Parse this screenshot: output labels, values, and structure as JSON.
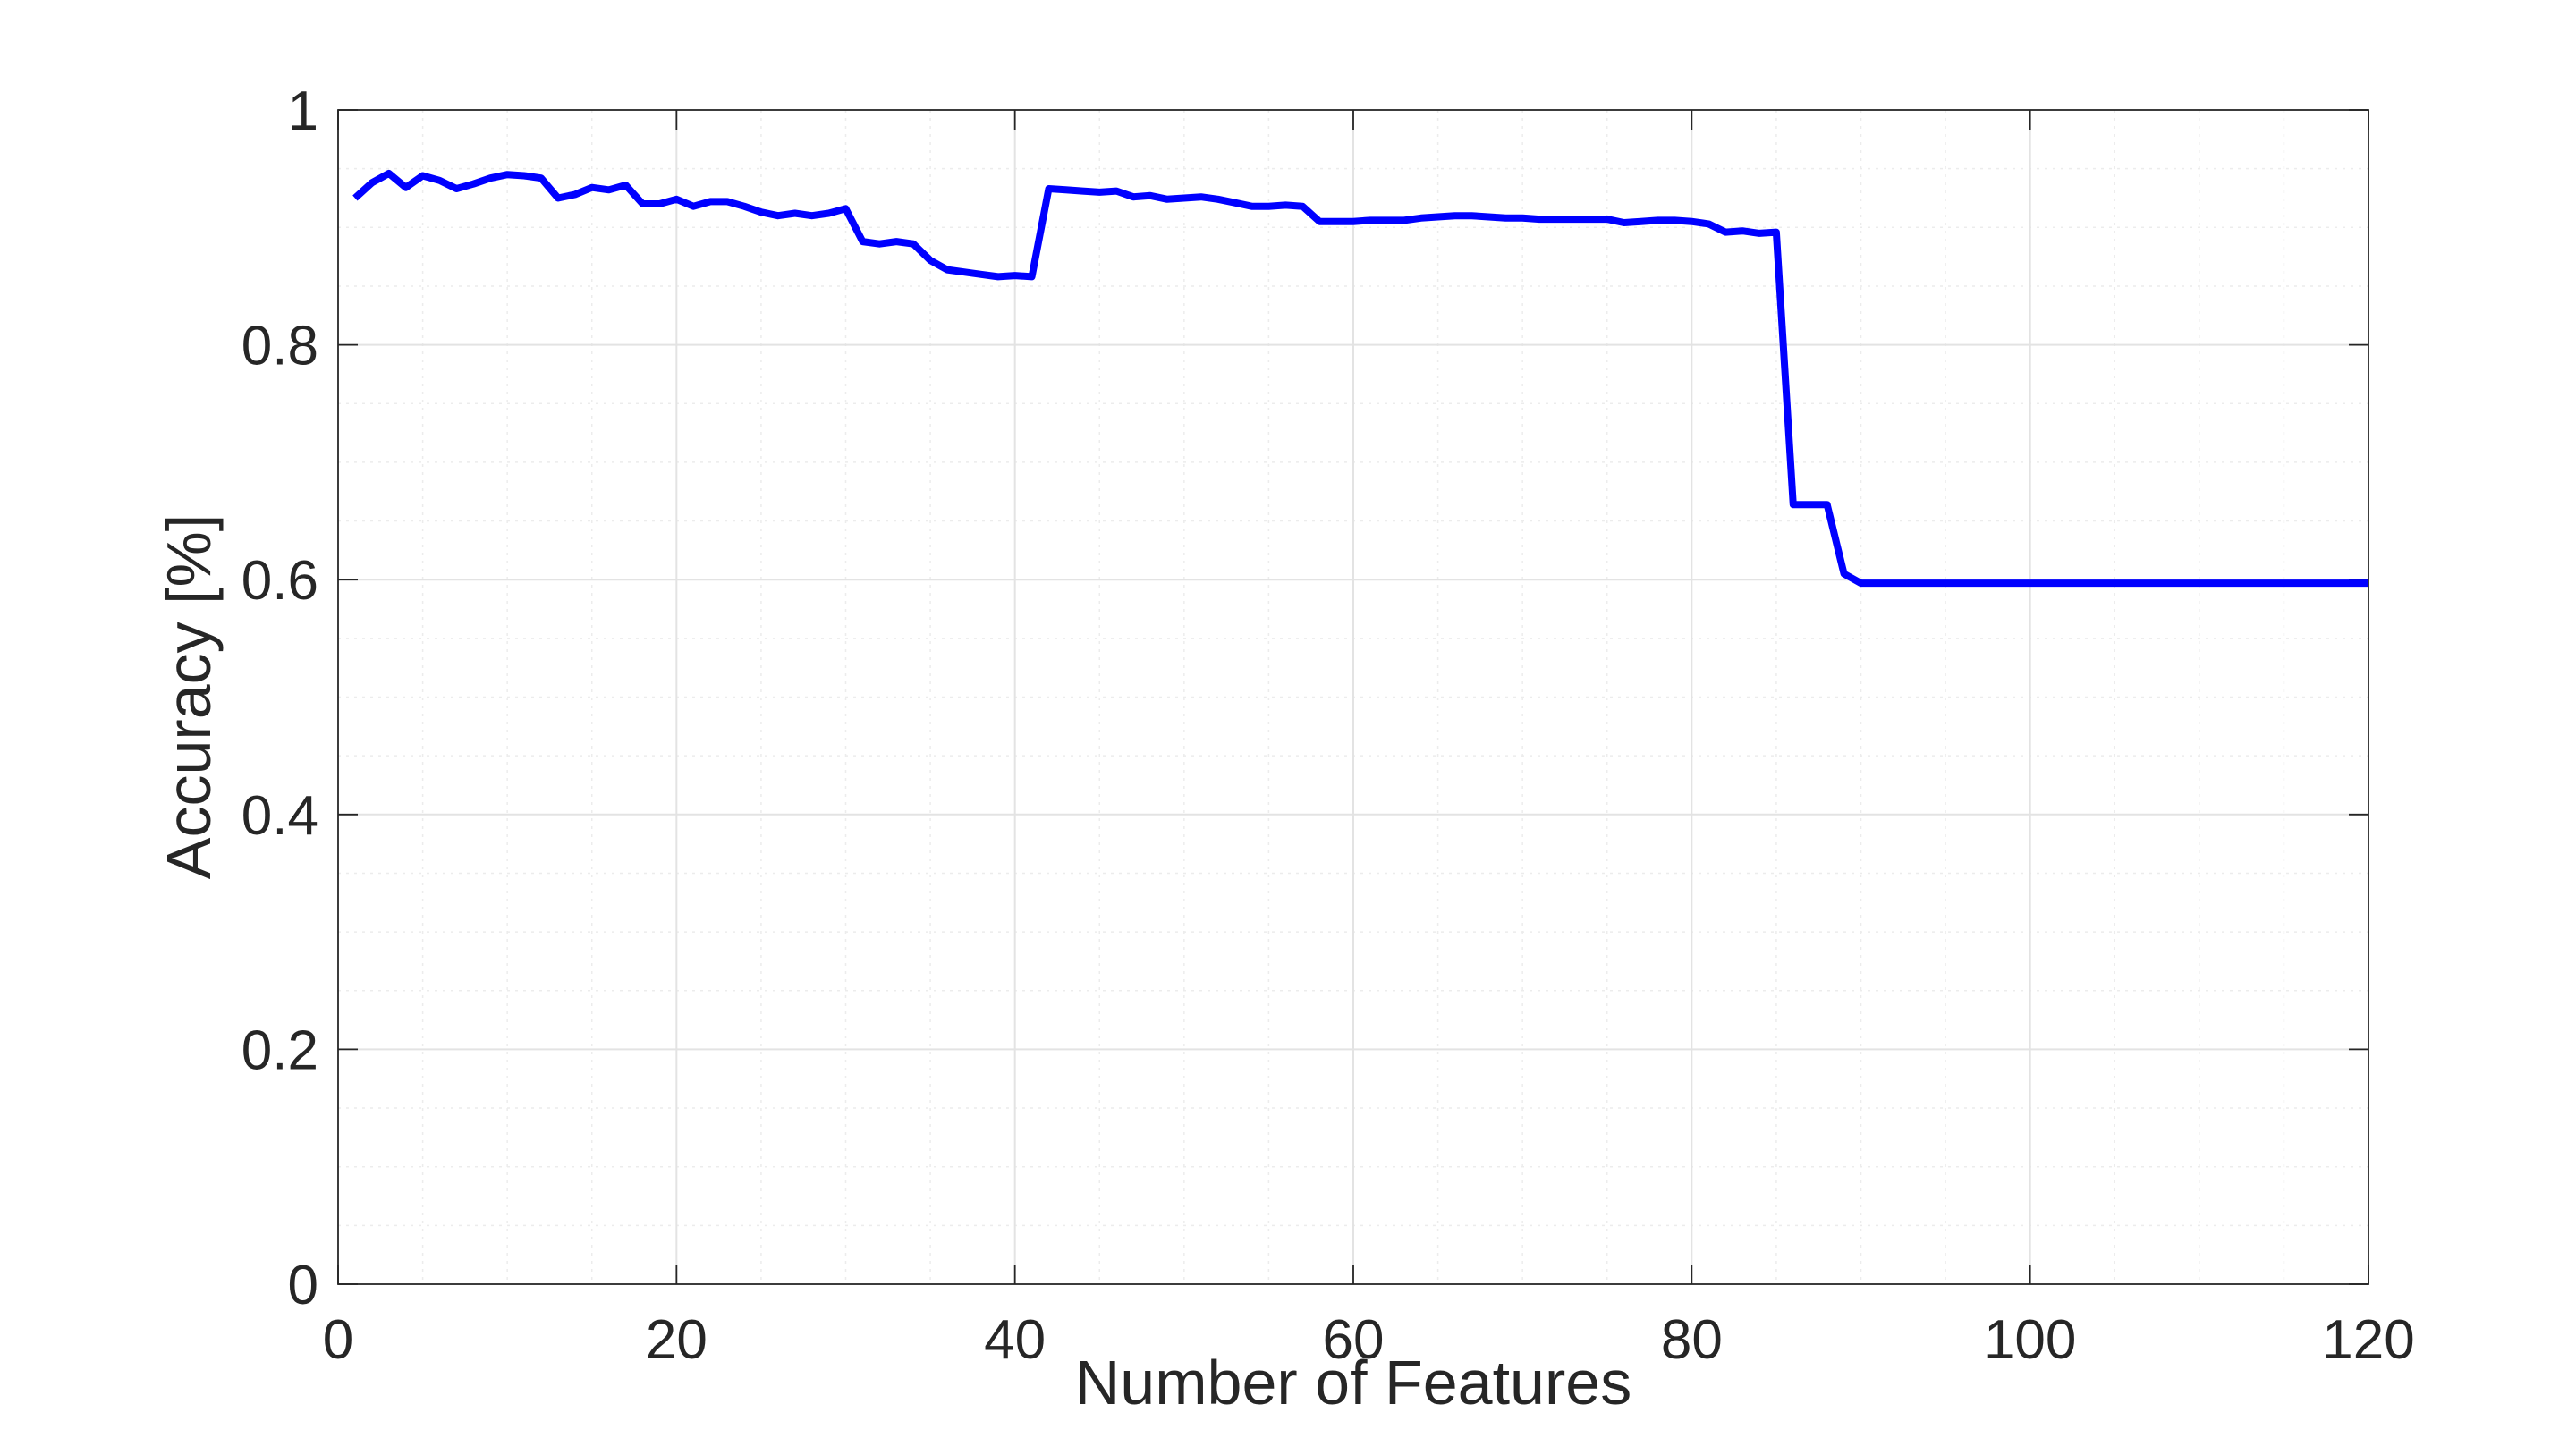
{
  "chart_data": {
    "type": "line",
    "title": "",
    "xlabel": "Number of Features",
    "ylabel": "Accuracy [%]",
    "xlim": [
      0,
      120
    ],
    "ylim": [
      0,
      1
    ],
    "xticks": [
      0,
      20,
      40,
      60,
      80,
      100,
      120
    ],
    "xtick_labels": [
      "0",
      "20",
      "40",
      "60",
      "80",
      "100",
      "120"
    ],
    "yticks": [
      0,
      0.2,
      0.4,
      0.6,
      0.8,
      1
    ],
    "ytick_labels": [
      "0",
      "0.2",
      "0.4",
      "0.6",
      "0.8",
      "1"
    ],
    "grid": "on",
    "minor_grid": "on",
    "series": [
      {
        "color": "#0000ff",
        "x": [
          1,
          2,
          3,
          4,
          5,
          6,
          7,
          8,
          9,
          10,
          11,
          12,
          13,
          14,
          15,
          16,
          17,
          18,
          19,
          20,
          21,
          22,
          23,
          24,
          25,
          26,
          27,
          28,
          29,
          30,
          31,
          32,
          33,
          34,
          35,
          36,
          37,
          38,
          39,
          40,
          41,
          42,
          43,
          44,
          45,
          46,
          47,
          48,
          49,
          50,
          51,
          52,
          53,
          54,
          55,
          56,
          57,
          58,
          59,
          60,
          61,
          62,
          63,
          64,
          65,
          66,
          67,
          68,
          69,
          70,
          71,
          72,
          73,
          74,
          75,
          76,
          77,
          78,
          79,
          80,
          81,
          82,
          83,
          84,
          85,
          86,
          87,
          88,
          89,
          90,
          91,
          92,
          93,
          94,
          95,
          96,
          97,
          98,
          99,
          100,
          101,
          102,
          103,
          104,
          105,
          106,
          107,
          108,
          109,
          110,
          111,
          112,
          113,
          114,
          115,
          116,
          117,
          118,
          119,
          120
        ],
        "y": [
          0.925,
          0.938,
          0.946,
          0.934,
          0.944,
          0.94,
          0.933,
          0.937,
          0.942,
          0.945,
          0.944,
          0.942,
          0.925,
          0.928,
          0.934,
          0.932,
          0.936,
          0.92,
          0.92,
          0.924,
          0.918,
          0.922,
          0.922,
          0.918,
          0.913,
          0.91,
          0.912,
          0.91,
          0.912,
          0.916,
          0.888,
          0.886,
          0.888,
          0.886,
          0.872,
          0.864,
          0.862,
          0.86,
          0.858,
          0.859,
          0.858,
          0.933,
          0.932,
          0.931,
          0.93,
          0.931,
          0.926,
          0.927,
          0.924,
          0.925,
          0.926,
          0.924,
          0.921,
          0.918,
          0.918,
          0.919,
          0.918,
          0.905,
          0.905,
          0.905,
          0.906,
          0.906,
          0.906,
          0.908,
          0.909,
          0.91,
          0.91,
          0.909,
          0.908,
          0.908,
          0.907,
          0.907,
          0.907,
          0.907,
          0.907,
          0.904,
          0.905,
          0.906,
          0.906,
          0.905,
          0.903,
          0.896,
          0.897,
          0.895,
          0.896,
          0.664,
          0.664,
          0.664,
          0.605,
          0.597,
          0.597,
          0.597,
          0.597,
          0.597,
          0.597,
          0.597,
          0.597,
          0.597,
          0.597,
          0.597,
          0.597,
          0.597,
          0.597,
          0.597,
          0.597,
          0.597,
          0.597,
          0.597,
          0.597,
          0.597,
          0.597,
          0.597,
          0.597,
          0.597,
          0.597,
          0.597,
          0.597,
          0.597,
          0.597,
          0.597
        ]
      }
    ]
  }
}
